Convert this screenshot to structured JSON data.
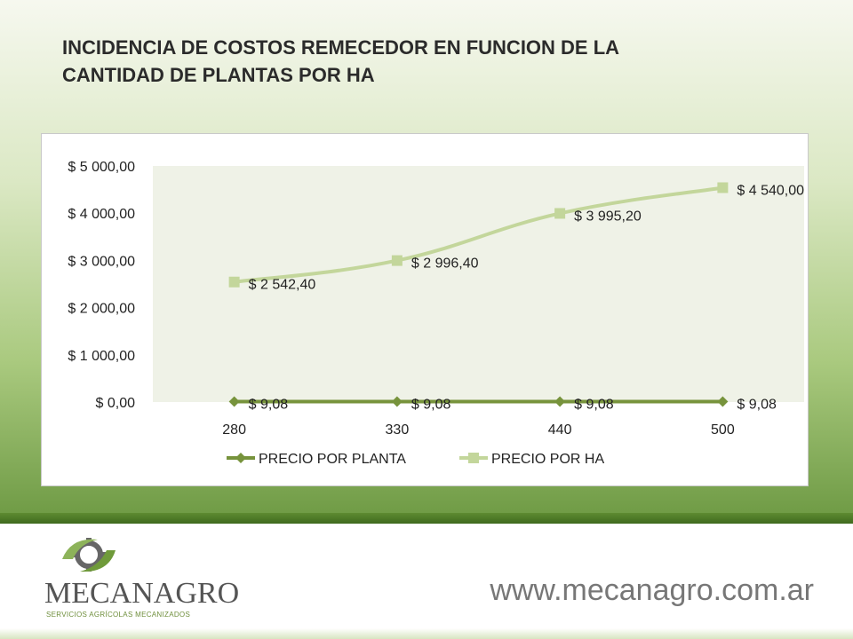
{
  "slide": {
    "title_line1": "INCIDENCIA DE COSTOS REMECEDOR EN FUNCION DE LA",
    "title_line2": "CANTIDAD DE PLANTAS POR HA"
  },
  "footer": {
    "logo_name": "MECANAGRO",
    "logo_tagline": "SERVICIOS AGRÍCOLAS MECANIZADOS",
    "website": "www.mecanagro.com.ar"
  },
  "colors": {
    "series1": "#77933c",
    "series2": "#c3d69b",
    "plot_area": "#eff2e7",
    "brand_green": "#5d8a31"
  },
  "chart_data": {
    "type": "line",
    "categories": [
      "280",
      "330",
      "440",
      "500"
    ],
    "y_ticks": [
      "$ 0,00",
      "$ 1 000,00",
      "$ 2 000,00",
      "$ 3 000,00",
      "$ 4 000,00",
      "$ 5 000,00"
    ],
    "ylim": [
      0,
      5000
    ],
    "grid": false,
    "legend_position": "bottom",
    "series": [
      {
        "name": "PRECIO POR PLANTA",
        "marker": "diamond",
        "values": [
          9.08,
          9.08,
          9.08,
          9.08
        ],
        "labels": [
          "$ 9,08",
          "$ 9,08",
          "$ 9,08",
          "$ 9,08"
        ]
      },
      {
        "name": "PRECIO POR HA",
        "marker": "square",
        "values": [
          2542.4,
          2996.4,
          3995.2,
          4540.0
        ],
        "labels": [
          "$ 2 542,40",
          "$ 2 996,40",
          "$ 3 995,20",
          "$ 4 540,00"
        ]
      }
    ]
  }
}
